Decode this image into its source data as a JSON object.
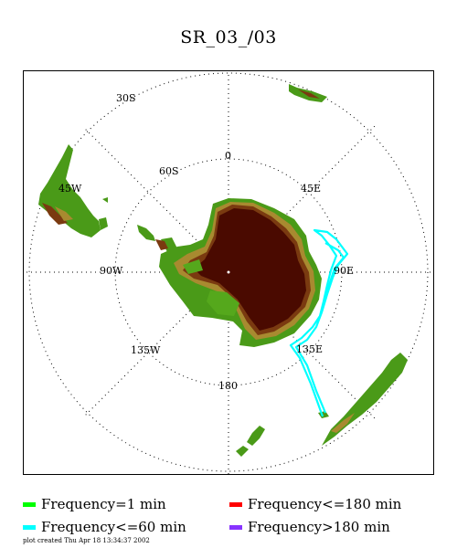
{
  "title": "SR_03_/03",
  "map": {
    "projection": "south-polar-stereographic",
    "graticule": {
      "latitude_labels": [
        "30S",
        "60S"
      ],
      "longitude_labels": [
        "0",
        "45E",
        "90E",
        "135E",
        "180",
        "135W",
        "90W",
        "45W"
      ]
    }
  },
  "legend": [
    {
      "label": "Frequency=1 min",
      "color": "#00ff00"
    },
    {
      "label": "Frequency<=180 min",
      "color": "#ff0000"
    },
    {
      "label": "Frequency<=60 min",
      "color": "#00ffff"
    },
    {
      "label": "Frequency>180 min",
      "color": "#8833ff"
    }
  ],
  "track_color": "#00ffff",
  "footer": "plot created Thu Apr 18 13:34:37 2002"
}
